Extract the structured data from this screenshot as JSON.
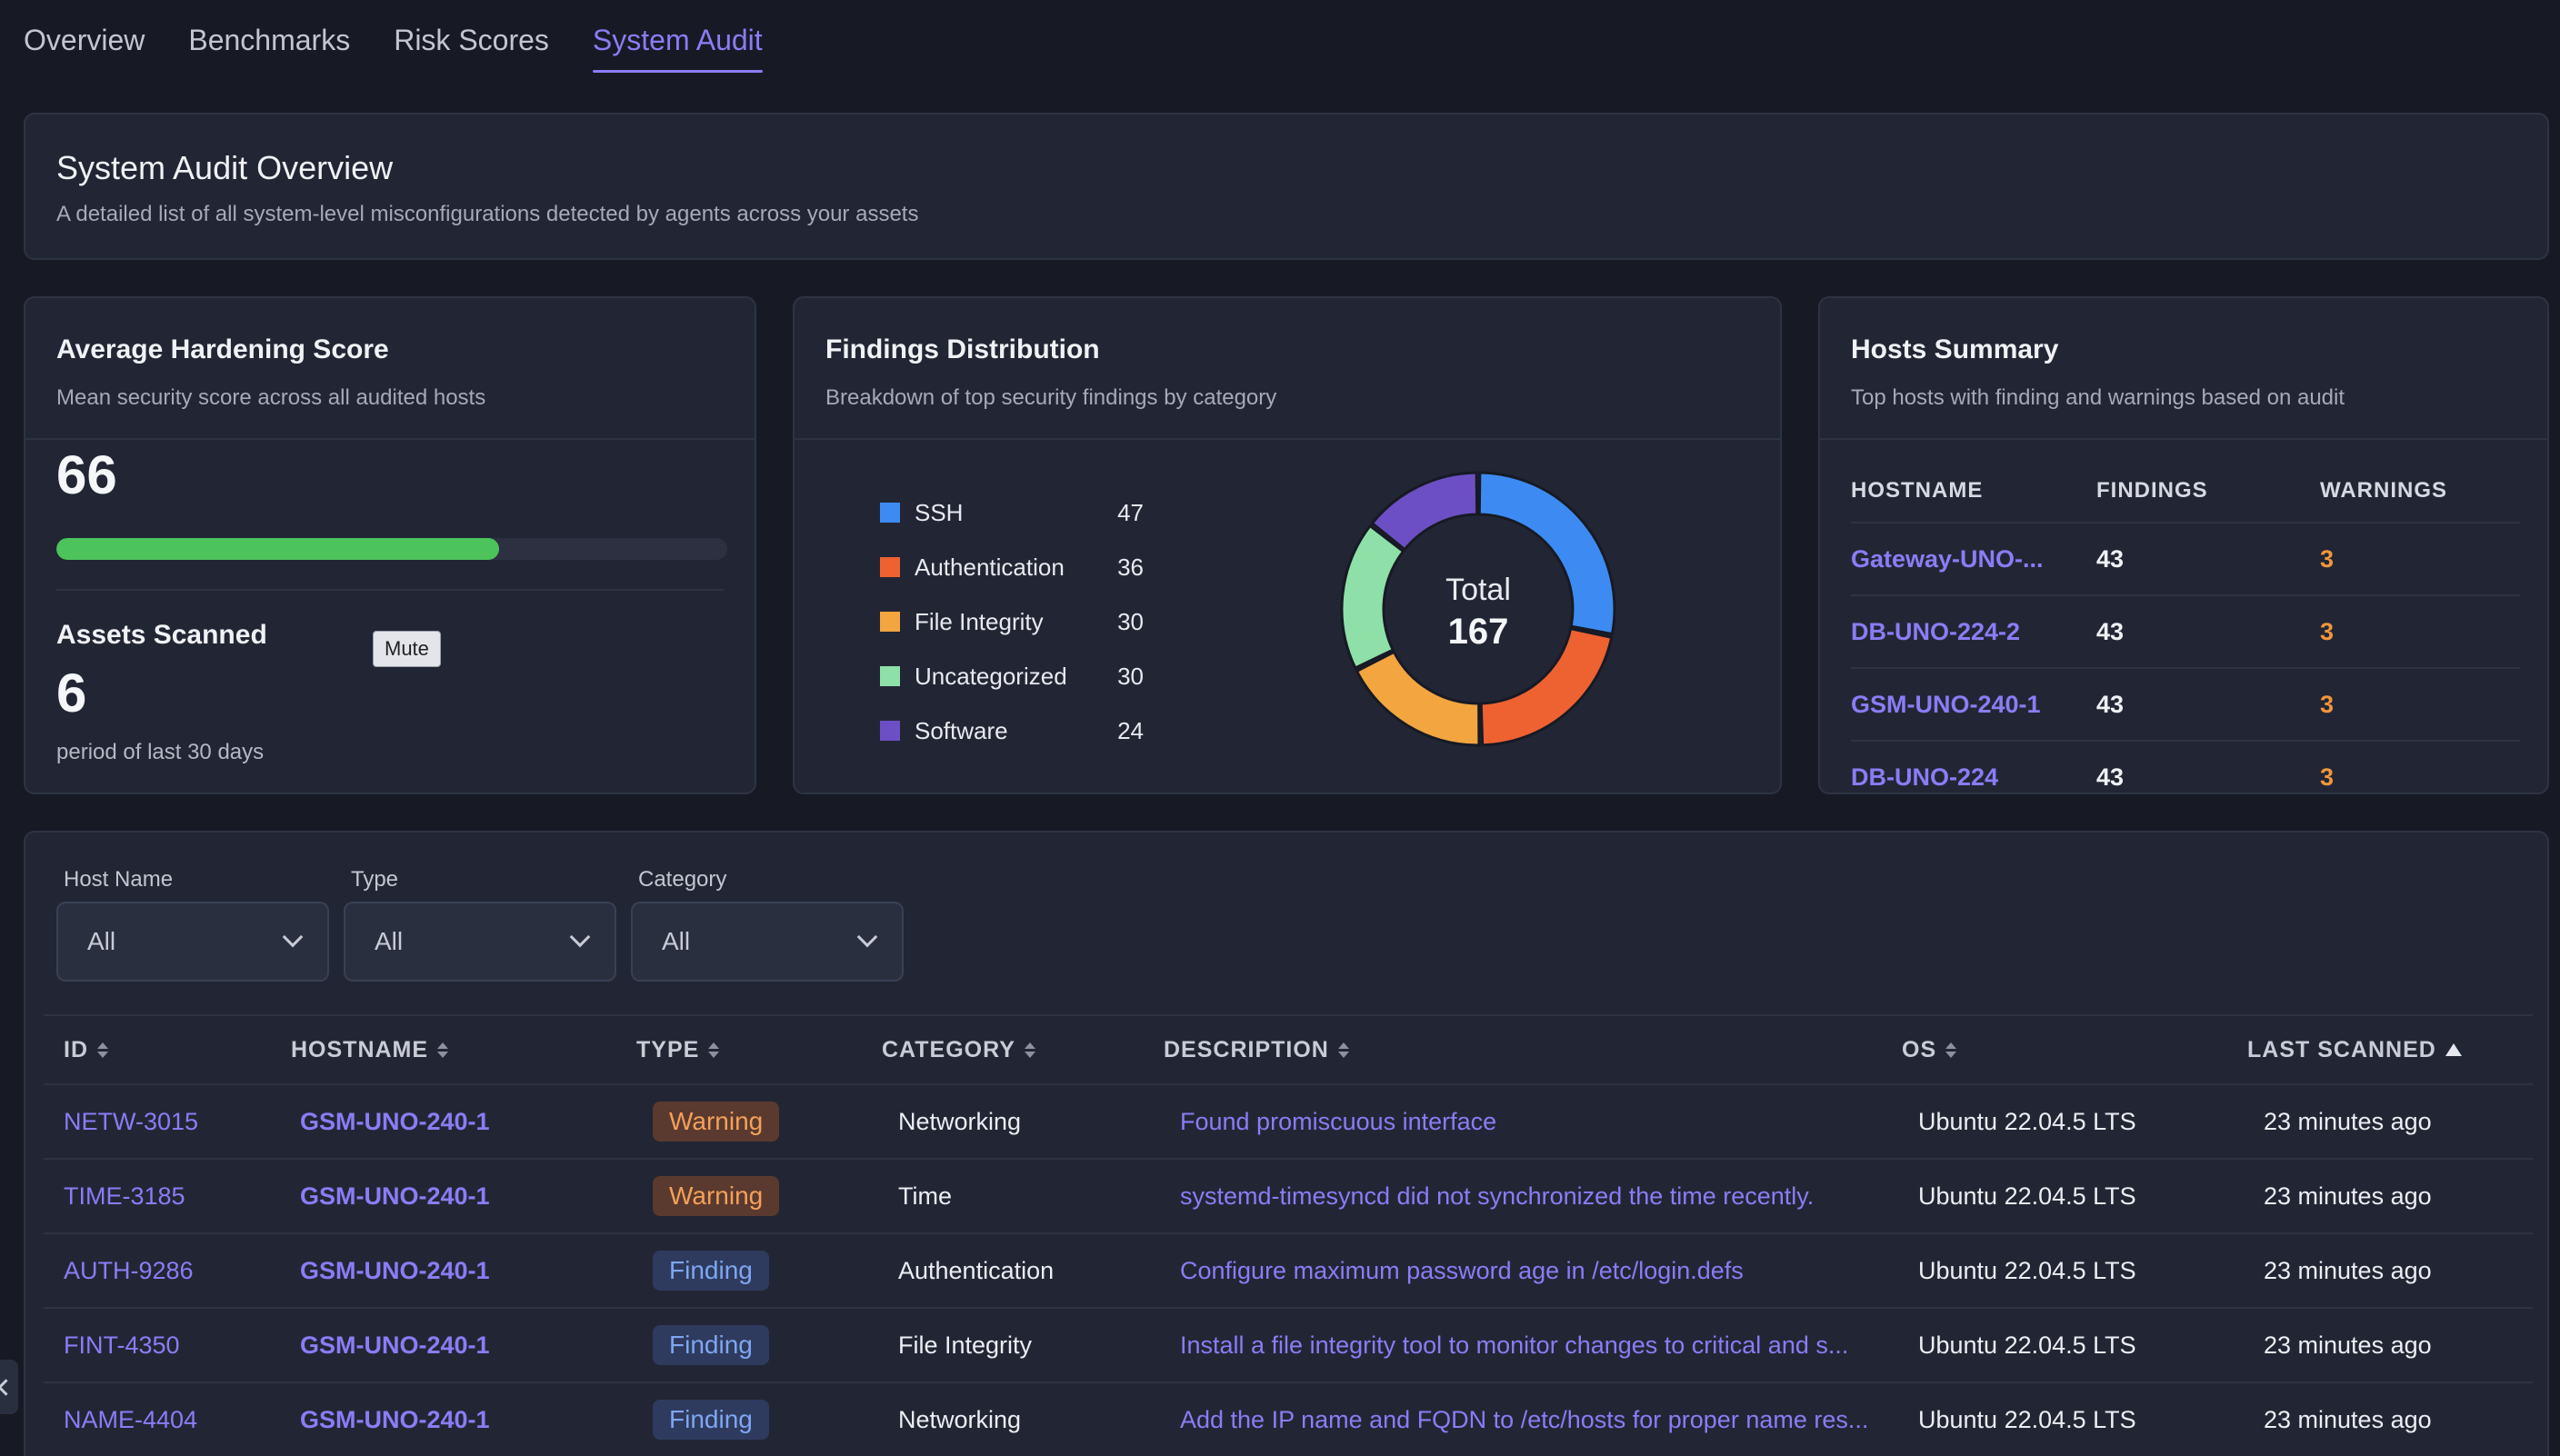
{
  "tabs": [
    {
      "label": "Overview"
    },
    {
      "label": "Benchmarks"
    },
    {
      "label": "Risk Scores"
    },
    {
      "label": "System Audit"
    }
  ],
  "overview": {
    "title": "System Audit Overview",
    "subtitle": "A detailed list of all system-level misconfigurations detected by agents across your assets"
  },
  "hardening": {
    "title": "Average Hardening Score",
    "subtitle": "Mean security score across all audited hosts",
    "score": "66",
    "progress_percent": 66,
    "progress_color": "#4cc35b",
    "assets_title": "Assets Scanned",
    "assets_value": "6",
    "assets_sub": "period of last 30 days",
    "tooltip": "Mute"
  },
  "distribution": {
    "title": "Findings Distribution",
    "subtitle": "Breakdown of top security findings by category",
    "total_label": "Total",
    "total_value": "167",
    "items": [
      {
        "label": "SSH",
        "value": "47",
        "color": "#3d8bf2"
      },
      {
        "label": "Authentication",
        "value": "36",
        "color": "#ee6231"
      },
      {
        "label": "File Integrity",
        "value": "30",
        "color": "#f3a540"
      },
      {
        "label": "Uncategorized",
        "value": "30",
        "color": "#8ee0a8"
      },
      {
        "label": "Software",
        "value": "24",
        "color": "#6c4fc4"
      }
    ]
  },
  "hosts": {
    "title": "Hosts Summary",
    "subtitle": "Top hosts with finding and warnings based on audit",
    "headers": {
      "hostname": "HOSTNAME",
      "findings": "FINDINGS",
      "warnings": "WARNINGS"
    },
    "rows": [
      {
        "hostname": "Gateway-UNO-...",
        "findings": "43",
        "warnings": "3"
      },
      {
        "hostname": "DB-UNO-224-2",
        "findings": "43",
        "warnings": "3"
      },
      {
        "hostname": "GSM-UNO-240-1",
        "findings": "43",
        "warnings": "3"
      },
      {
        "hostname": "DB-UNO-224",
        "findings": "43",
        "warnings": "3"
      }
    ]
  },
  "filters": [
    {
      "label": "Host Name",
      "value": "All"
    },
    {
      "label": "Type",
      "value": "All"
    },
    {
      "label": "Category",
      "value": "All"
    }
  ],
  "table": {
    "headers": {
      "id": "ID",
      "hostname": "HOSTNAME",
      "type": "TYPE",
      "category": "CATEGORY",
      "description": "DESCRIPTION",
      "os": "OS",
      "last_scanned": "LAST SCANNED"
    },
    "rows": [
      {
        "id": "NETW-3015",
        "hostname": "GSM-UNO-240-1",
        "type": "Warning",
        "category": "Networking",
        "description": "Found promiscuous interface",
        "os": "Ubuntu 22.04.5 LTS",
        "last_scanned": "23 minutes ago"
      },
      {
        "id": "TIME-3185",
        "hostname": "GSM-UNO-240-1",
        "type": "Warning",
        "category": "Time",
        "description": "systemd-timesyncd did not synchronized the time recently.",
        "os": "Ubuntu 22.04.5 LTS",
        "last_scanned": "23 minutes ago"
      },
      {
        "id": "AUTH-9286",
        "hostname": "GSM-UNO-240-1",
        "type": "Finding",
        "category": "Authentication",
        "description": "Configure maximum password age in /etc/login.defs",
        "os": "Ubuntu 22.04.5 LTS",
        "last_scanned": "23 minutes ago"
      },
      {
        "id": "FINT-4350",
        "hostname": "GSM-UNO-240-1",
        "type": "Finding",
        "category": "File Integrity",
        "description": "Install a file integrity tool to monitor changes to critical and s...",
        "os": "Ubuntu 22.04.5 LTS",
        "last_scanned": "23 minutes ago"
      },
      {
        "id": "NAME-4404",
        "hostname": "GSM-UNO-240-1",
        "type": "Finding",
        "category": "Networking",
        "description": "Add the IP name and FQDN to /etc/hosts for proper name res...",
        "os": "Ubuntu 22.04.5 LTS",
        "last_scanned": "23 minutes ago"
      }
    ]
  },
  "colors": {
    "accent": "#8b7cf6",
    "warning": "#f4a05a",
    "finding": "#7fa6f2",
    "background": "#171a24"
  }
}
